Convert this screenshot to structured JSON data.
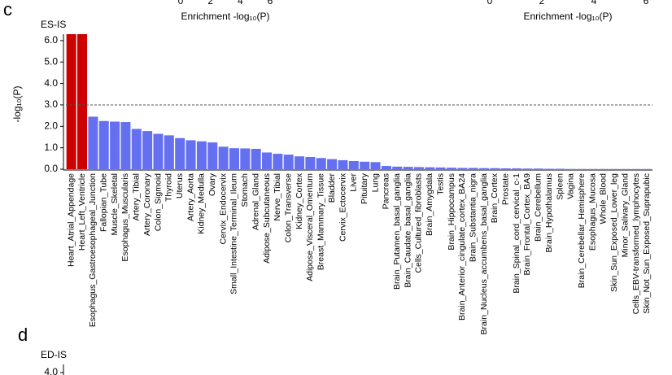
{
  "chart_data": [
    {
      "type": "axis",
      "xlabel": "Enrichment -log₁₀(P)",
      "xlim": [
        0,
        6
      ],
      "xticks": [
        0,
        2,
        4,
        6
      ]
    },
    {
      "type": "axis",
      "xlabel": "Enrichment -log₁₀(P)",
      "xlim": [
        0,
        6
      ],
      "xticks": [
        0,
        2,
        4,
        6
      ]
    },
    {
      "type": "bar",
      "panel": "c",
      "title": "ES-IS",
      "ylabel": "-log₁₀(P)",
      "ylim": [
        0,
        6.3
      ],
      "yticks": [
        {
          "value": 0,
          "label": "0.0"
        },
        {
          "value": 1,
          "label": "1.0"
        },
        {
          "value": 2,
          "label": "2.0"
        },
        {
          "value": 3,
          "label": "3.0"
        },
        {
          "value": 4,
          "label": "4.0"
        },
        {
          "value": 5,
          "label": "5.0"
        },
        {
          "value": 6,
          "label": "6.0"
        }
      ],
      "threshold": 3,
      "color": "#6470f0",
      "highlight_color": "#cc0000",
      "categories": [
        "Heart_Atrial_Appendage",
        "Heart_Left_Ventricle",
        "Esophagus_Gastroesophageal_Junction",
        "Fallopian_Tube",
        "Muscle_Skeletal",
        "Esophagus_Muscularis",
        "Artery_Tibial",
        "Artery_Coronary",
        "Colon_Sigmoid",
        "Thyroid",
        "Uterus",
        "Artery_Aorta",
        "Kidney_Medulla",
        "Ovary",
        "Cervix_Endocervix",
        "Small_Intestine_Terminal_Ileum",
        "Stomach",
        "Adrenal_Gland",
        "Adipose_Subcutaneous",
        "Nerve_Tibial",
        "Colon_Transverse",
        "Kidney_Cortex",
        "Adipose_Visceral_Omentum",
        "Breast_Mammary_Tissue",
        "Bladder",
        "Cervix_Ectocervix",
        "Liver",
        "Pituitary",
        "Lung",
        "Pancreas",
        "Brain_Putamen_basal_ganglia",
        "Brain_Caudate_basal_ganglia",
        "Cells_Cultured_fibroblasts",
        "Brain_Amygdala",
        "Testis",
        "Brain_Hippocampus",
        "Brain_Anterior_cingulate_cortex_BA24",
        "Brain_Substantia_nigra",
        "Brain_Nucleus_accumbens_basal_ganglia",
        "Brain_Cortex",
        "Prostate",
        "Brain_Spinal_cord_cervical_c-1",
        "Brain_Frontal_Cortex_BA9",
        "Brain_Cerebellum",
        "Brain_Hypothalamus",
        "Spleen",
        "Vagina",
        "Brain_Cerebellar_Hemisphere",
        "Esophagus_Mucosa",
        "Whole_Blood",
        "Skin_Sun_Exposed_Lower_leg",
        "Minor_Salivary_Gland",
        "Cells_EBV-transformed_lymphocytes",
        "Skin_Not_Sun_Exposed_Suprapubic"
      ],
      "values": [
        6.3,
        6.3,
        2.45,
        2.25,
        2.22,
        2.2,
        1.88,
        1.78,
        1.65,
        1.58,
        1.45,
        1.35,
        1.3,
        1.25,
        1.05,
        0.98,
        0.97,
        0.95,
        0.78,
        0.72,
        0.68,
        0.6,
        0.57,
        0.52,
        0.47,
        0.42,
        0.38,
        0.35,
        0.33,
        0.15,
        0.12,
        0.11,
        0.1,
        0.09,
        0.08,
        0.07,
        0.06,
        0.06,
        0.05,
        0.05,
        0.04,
        0.04,
        0.03,
        0.03,
        0.02,
        0.02,
        0.01,
        0.01,
        0.01,
        0.01,
        0.01,
        0.01,
        0.01,
        0.01
      ]
    },
    {
      "type": "axis",
      "panel": "d",
      "title": "ED-IS",
      "yticks": [
        {
          "value": 4,
          "label": "4.0"
        }
      ]
    }
  ]
}
